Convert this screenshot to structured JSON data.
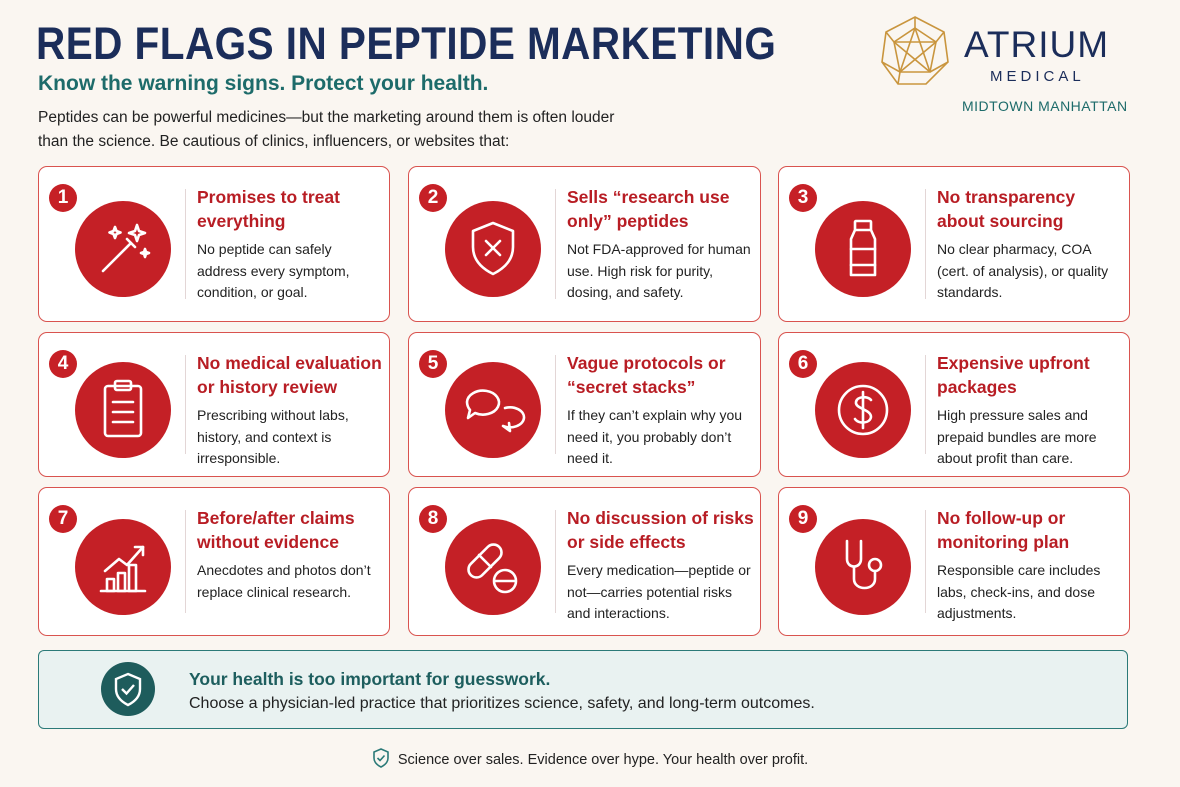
{
  "header": {
    "title": "RED FLAGS IN PEPTIDE MARKETING",
    "subtitle": "Know the warning signs. Protect your health.",
    "intro": "Peptides can be powerful medicines—but the marketing around them is often louder than the science. Be cautious of clinics, influencers, or websites that:"
  },
  "logo": {
    "name": "ATRIUM",
    "sub": "MEDICAL",
    "location": "MIDTOWN MANHATTAN"
  },
  "cards": [
    {
      "number": "1",
      "title": "Promises to treat everything",
      "text": "No peptide can safely address every symptom, condition, or goal."
    },
    {
      "number": "2",
      "title": "Sells “research use only” peptides",
      "text": "Not FDA-approved for human use. High risk for purity, dosing, and safety."
    },
    {
      "number": "3",
      "title": "No transparency about sourcing",
      "text": "No clear pharmacy, COA (cert. of analysis), or quality standards."
    },
    {
      "number": "4",
      "title": "No medical evaluation or history review",
      "text": "Prescribing without labs, history, and context is irresponsible."
    },
    {
      "number": "5",
      "title": "Vague protocols or “secret stacks”",
      "text": "If they can’t explain why you need it, you probably don’t need it."
    },
    {
      "number": "6",
      "title": "Expensive upfront packages",
      "text": "High pressure sales and prepaid bundles are more about profit than care."
    },
    {
      "number": "7",
      "title": "Before/after claims without evidence",
      "text": "Anecdotes and photos don’t replace clinical research."
    },
    {
      "number": "8",
      "title": "No discussion of risks or side effects",
      "text": "Every medication—peptide or not—carries potential risks and interactions."
    },
    {
      "number": "9",
      "title": "No follow-up or monitoring plan",
      "text": "Responsible care includes labs, check-ins, and dose adjustments."
    }
  ],
  "banner": {
    "title": "Your health is too important for guesswork.",
    "text": "Choose a physician-led practice that prioritizes science, safety, and long-term outcomes."
  },
  "footer": {
    "text": "Science over sales. Evidence over hype. Your health over profit."
  }
}
